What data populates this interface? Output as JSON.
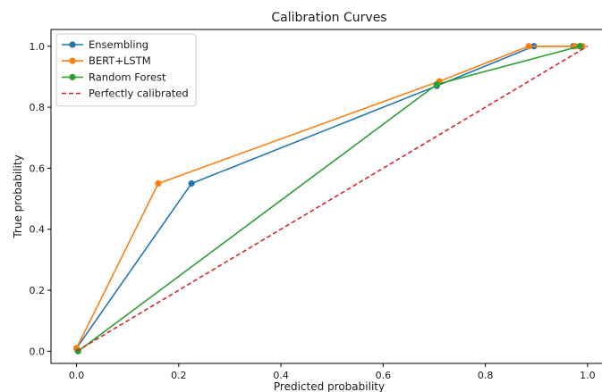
{
  "chart_data": {
    "type": "line",
    "title": "Calibration Curves",
    "xlabel": "Predicted probability",
    "ylabel": "True probability",
    "xlim": [
      -0.05,
      1.03
    ],
    "ylim": [
      -0.04,
      1.055
    ],
    "xticks": [
      0.0,
      0.2,
      0.4,
      0.6,
      0.8,
      1.0
    ],
    "yticks": [
      0.0,
      0.2,
      0.4,
      0.6,
      0.8,
      1.0
    ],
    "xtick_labels": [
      "0.0",
      "0.2",
      "0.4",
      "0.6",
      "0.8",
      "1.0"
    ],
    "ytick_labels": [
      "0.0",
      "0.2",
      "0.4",
      "0.6",
      "0.8",
      "1.0"
    ],
    "grid": false,
    "legend_position": "top-left",
    "series": [
      {
        "name": "Ensembling",
        "color": "#1f77b4",
        "style": "solid",
        "marker": "circle",
        "x": [
          0.0,
          0.225,
          0.705,
          0.895,
          0.972,
          0.985
        ],
        "y": [
          0.01,
          0.55,
          0.87,
          1.0,
          1.0,
          1.0
        ]
      },
      {
        "name": "BERT+LSTM",
        "color": "#ff7f0e",
        "style": "solid",
        "marker": "circle",
        "x": [
          0.0,
          0.16,
          0.71,
          0.885,
          0.975,
          0.99
        ],
        "y": [
          0.01,
          0.55,
          0.885,
          1.0,
          1.0,
          1.0
        ]
      },
      {
        "name": "Random Forest",
        "color": "#2ca02c",
        "style": "solid",
        "marker": "circle",
        "x": [
          0.003,
          0.705,
          0.985
        ],
        "y": [
          0.0,
          0.875,
          1.0
        ]
      },
      {
        "name": "Perfectly calibrated",
        "color": "#d62728",
        "style": "dashed",
        "marker": "none",
        "x": [
          0.0,
          1.0
        ],
        "y": [
          0.0,
          1.0
        ]
      }
    ]
  }
}
